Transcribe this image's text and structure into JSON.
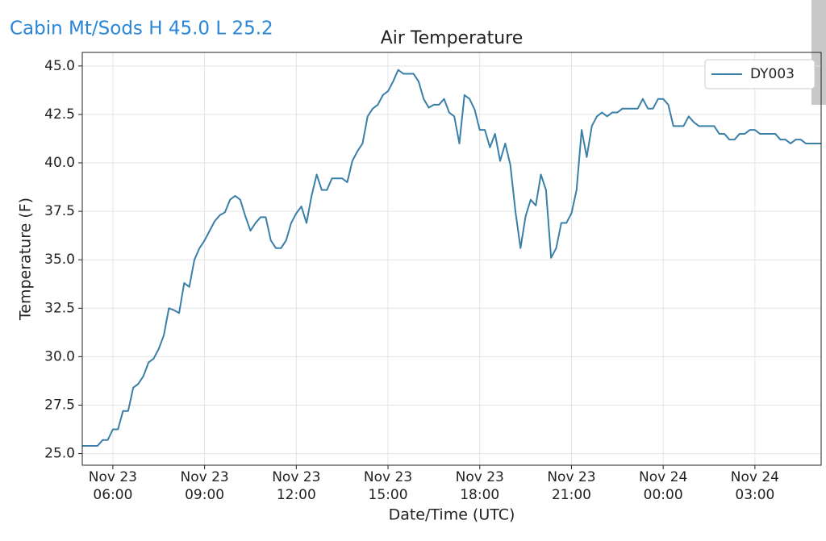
{
  "header": {
    "station": "Cabin Mt/Sods H 45.0 L 25.2"
  },
  "chart_data": {
    "type": "line",
    "title": "Air Temperature",
    "xlabel": "Date/Time (UTC)",
    "ylabel": "Temperature (F)",
    "x": [
      "Nov 23 05:00",
      "Nov 23 05:10",
      "Nov 23 05:20",
      "Nov 23 05:30",
      "Nov 23 05:40",
      "Nov 23 05:50",
      "Nov 23 06:00",
      "Nov 23 06:10",
      "Nov 23 06:20",
      "Nov 23 06:30",
      "Nov 23 06:40",
      "Nov 23 06:50",
      "Nov 23 07:00",
      "Nov 23 07:10",
      "Nov 23 07:20",
      "Nov 23 07:30",
      "Nov 23 07:40",
      "Nov 23 07:50",
      "Nov 23 08:00",
      "Nov 23 08:10",
      "Nov 23 08:20",
      "Nov 23 08:30",
      "Nov 23 08:40",
      "Nov 23 08:50",
      "Nov 23 09:00",
      "Nov 23 09:10",
      "Nov 23 09:20",
      "Nov 23 09:30",
      "Nov 23 09:40",
      "Nov 23 09:50",
      "Nov 23 10:00",
      "Nov 23 10:10",
      "Nov 23 10:20",
      "Nov 23 10:30",
      "Nov 23 10:40",
      "Nov 23 10:50",
      "Nov 23 11:00",
      "Nov 23 11:10",
      "Nov 23 11:20",
      "Nov 23 11:30",
      "Nov 23 11:40",
      "Nov 23 11:50",
      "Nov 23 12:00",
      "Nov 23 12:10",
      "Nov 23 12:20",
      "Nov 23 12:30",
      "Nov 23 12:40",
      "Nov 23 12:50",
      "Nov 23 13:00",
      "Nov 23 13:10",
      "Nov 23 13:20",
      "Nov 23 13:30",
      "Nov 23 13:40",
      "Nov 23 13:50",
      "Nov 23 14:00",
      "Nov 23 14:10",
      "Nov 23 14:20",
      "Nov 23 14:30",
      "Nov 23 14:40",
      "Nov 23 14:50",
      "Nov 23 15:00",
      "Nov 23 15:10",
      "Nov 23 15:20",
      "Nov 23 15:30",
      "Nov 23 15:40",
      "Nov 23 15:50",
      "Nov 23 16:00",
      "Nov 23 16:10",
      "Nov 23 16:20",
      "Nov 23 16:30",
      "Nov 23 16:40",
      "Nov 23 16:50",
      "Nov 23 17:00",
      "Nov 23 17:10",
      "Nov 23 17:20",
      "Nov 23 17:30",
      "Nov 23 17:40",
      "Nov 23 17:50",
      "Nov 23 18:00",
      "Nov 23 18:10",
      "Nov 23 18:20",
      "Nov 23 18:30",
      "Nov 23 18:40",
      "Nov 23 18:50",
      "Nov 23 19:00",
      "Nov 23 19:10",
      "Nov 23 19:20",
      "Nov 23 19:30",
      "Nov 23 19:40",
      "Nov 23 19:50",
      "Nov 23 20:00",
      "Nov 23 20:10",
      "Nov 23 20:20",
      "Nov 23 20:30",
      "Nov 23 20:40",
      "Nov 23 20:50",
      "Nov 23 21:00",
      "Nov 23 21:10",
      "Nov 23 21:20",
      "Nov 23 21:30",
      "Nov 23 21:40",
      "Nov 23 21:50",
      "Nov 23 22:00",
      "Nov 23 22:10",
      "Nov 23 22:20",
      "Nov 23 22:30",
      "Nov 23 22:40",
      "Nov 23 22:50",
      "Nov 23 23:00",
      "Nov 23 23:10",
      "Nov 23 23:20",
      "Nov 23 23:30",
      "Nov 23 23:40",
      "Nov 23 23:50",
      "Nov 24 00:00",
      "Nov 24 00:10",
      "Nov 24 00:20",
      "Nov 24 00:30",
      "Nov 24 00:40",
      "Nov 24 00:50",
      "Nov 24 01:00",
      "Nov 24 01:10",
      "Nov 24 01:20",
      "Nov 24 01:30",
      "Nov 24 01:40",
      "Nov 24 01:50",
      "Nov 24 02:00",
      "Nov 24 02:10",
      "Nov 24 02:20",
      "Nov 24 02:30",
      "Nov 24 02:40",
      "Nov 24 02:50",
      "Nov 24 03:00",
      "Nov 24 03:10",
      "Nov 24 03:20",
      "Nov 24 03:30",
      "Nov 24 03:40",
      "Nov 24 03:50",
      "Nov 24 04:00",
      "Nov 24 04:10",
      "Nov 24 04:20",
      "Nov 24 04:30",
      "Nov 24 04:40",
      "Nov 24 04:50",
      "Nov 24 05:00",
      "Nov 24 05:10"
    ],
    "series": [
      {
        "name": "DY003",
        "color": "#3a7fa8",
        "values": [
          25.4,
          25.4,
          25.4,
          25.4,
          25.7,
          25.7,
          26.25,
          26.25,
          27.2,
          27.2,
          28.4,
          28.6,
          29.0,
          29.7,
          29.9,
          30.4,
          31.1,
          32.5,
          32.4,
          32.25,
          33.8,
          33.6,
          35.0,
          35.6,
          36.0,
          36.5,
          37.0,
          37.3,
          37.45,
          38.1,
          38.3,
          38.1,
          37.25,
          36.5,
          36.9,
          37.2,
          37.2,
          36.0,
          35.6,
          35.6,
          36.0,
          36.9,
          37.4,
          37.75,
          36.9,
          38.3,
          39.4,
          38.6,
          38.6,
          39.2,
          39.2,
          39.2,
          39.0,
          40.1,
          40.6,
          41.0,
          42.4,
          42.8,
          43.0,
          43.5,
          43.7,
          44.2,
          44.8,
          44.6,
          44.6,
          44.6,
          44.2,
          43.3,
          42.85,
          43.0,
          43.0,
          43.3,
          42.6,
          42.4,
          41.0,
          43.5,
          43.3,
          42.75,
          41.7,
          41.7,
          40.8,
          41.5,
          40.1,
          41.0,
          39.9,
          37.5,
          35.6,
          37.25,
          38.1,
          37.8,
          39.4,
          38.6,
          35.1,
          35.6,
          36.9,
          36.9,
          37.4,
          38.6,
          41.7,
          40.3,
          41.9,
          42.4,
          42.6,
          42.4,
          42.6,
          42.6,
          42.8,
          42.8,
          42.8,
          42.8,
          43.3,
          42.8,
          42.8,
          43.3,
          43.3,
          43.0,
          41.9,
          41.9,
          41.9,
          42.4,
          42.1,
          41.9,
          41.9,
          41.9,
          41.9,
          41.5,
          41.5,
          41.2,
          41.2,
          41.5,
          41.5,
          41.7,
          41.7,
          41.5,
          41.5,
          41.5,
          41.5,
          41.2,
          41.2,
          41.0,
          41.2,
          41.2,
          41.0,
          41.0,
          41.0,
          41.0
        ]
      }
    ],
    "xlim": [
      "Nov 23 05:00",
      "Nov 24 05:10"
    ],
    "xticks": [
      "Nov 23 06:00",
      "Nov 23 09:00",
      "Nov 23 12:00",
      "Nov 23 15:00",
      "Nov 23 18:00",
      "Nov 23 21:00",
      "Nov 24 00:00",
      "Nov 24 03:00"
    ],
    "ylim": [
      24.4,
      45.7
    ],
    "yticks": [
      {
        "value": 25,
        "label": "25.0"
      },
      {
        "value": 27.5,
        "label": "27.5"
      },
      {
        "value": 30,
        "label": "30.0"
      },
      {
        "value": 32.5,
        "label": "32.5"
      },
      {
        "value": 35,
        "label": "35.0"
      },
      {
        "value": 37.5,
        "label": "37.5"
      },
      {
        "value": 40,
        "label": "40.0"
      },
      {
        "value": 42.5,
        "label": "42.5"
      },
      {
        "value": 45,
        "label": "45.0"
      }
    ],
    "grid": true,
    "legend": "upper right"
  }
}
